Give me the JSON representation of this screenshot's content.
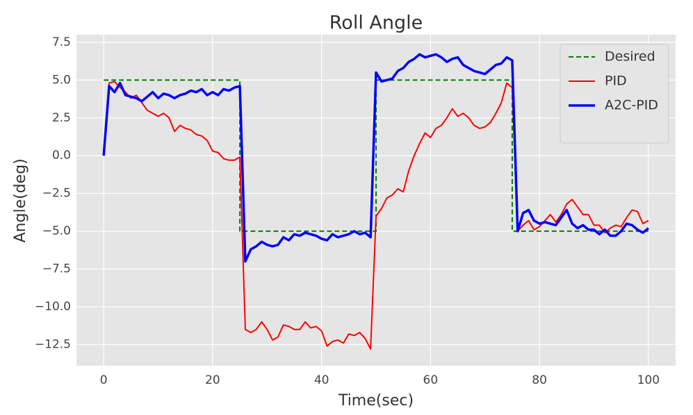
{
  "chart_data": {
    "type": "line",
    "title": "Roll Angle",
    "x_label": "Time(sec)",
    "y_label": "Angle(deg)",
    "x": [
      0,
      1,
      2,
      3,
      4,
      5,
      6,
      7,
      8,
      9,
      10,
      11,
      12,
      13,
      14,
      15,
      16,
      17,
      18,
      19,
      20,
      21,
      22,
      23,
      24,
      25,
      26,
      27,
      28,
      29,
      30,
      31,
      32,
      33,
      34,
      35,
      36,
      37,
      38,
      39,
      40,
      41,
      42,
      43,
      44,
      45,
      46,
      47,
      48,
      49,
      50,
      51,
      52,
      53,
      54,
      55,
      56,
      57,
      58,
      59,
      60,
      61,
      62,
      63,
      64,
      65,
      66,
      67,
      68,
      69,
      70,
      71,
      72,
      73,
      74,
      75,
      76,
      77,
      78,
      79,
      80,
      81,
      82,
      83,
      84,
      85,
      86,
      87,
      88,
      89,
      90,
      91,
      92,
      93,
      94,
      95,
      96,
      97,
      98,
      99,
      100
    ],
    "series": [
      {
        "name": "Desired",
        "color": "#008000",
        "linestyle": "dashed",
        "linewidth": 2,
        "x": [
          0,
          25,
          25,
          50,
          50,
          75,
          75,
          100
        ],
        "values": [
          5,
          5,
          -5,
          -5,
          5,
          5,
          -5,
          -5
        ]
      },
      {
        "name": "PID",
        "color": "#ff0000",
        "linestyle": "solid",
        "linewidth": 2,
        "values": [
          0,
          4.8,
          4.9,
          4.5,
          4.2,
          3.8,
          4.0,
          3.5,
          3.0,
          2.8,
          2.6,
          2.8,
          2.5,
          1.6,
          2.0,
          1.8,
          1.7,
          1.4,
          1.3,
          1.0,
          0.3,
          0.2,
          -0.2,
          -0.3,
          -0.3,
          -0.1,
          -11.5,
          -11.7,
          -11.5,
          -11.0,
          -11.5,
          -12.2,
          -12.0,
          -11.2,
          -11.3,
          -11.5,
          -11.5,
          -11.0,
          -11.4,
          -11.3,
          -11.6,
          -12.6,
          -12.3,
          -12.2,
          -12.4,
          -11.8,
          -11.9,
          -11.7,
          -12.1,
          -12.8,
          -4.0,
          -3.5,
          -2.8,
          -2.6,
          -2.2,
          -2.4,
          -1.0,
          0.0,
          0.8,
          1.5,
          1.2,
          1.8,
          2.0,
          2.5,
          3.1,
          2.6,
          2.8,
          2.5,
          2.0,
          1.8,
          1.9,
          2.2,
          2.8,
          3.5,
          4.8,
          4.5,
          -5.0,
          -4.6,
          -4.3,
          -4.9,
          -4.7,
          -4.3,
          -3.9,
          -4.4,
          -3.9,
          -3.2,
          -2.9,
          -3.4,
          -3.9,
          -3.9,
          -4.6,
          -4.6,
          -5.1,
          -4.8,
          -4.6,
          -4.7,
          -4.1,
          -3.6,
          -3.7,
          -4.5,
          -4.3
        ]
      },
      {
        "name": "A2C-PID",
        "color": "#0000ff",
        "linestyle": "solid",
        "linewidth": 3.5,
        "values": [
          0,
          4.6,
          4.2,
          4.8,
          4.0,
          3.9,
          3.8,
          3.6,
          3.9,
          4.2,
          3.8,
          4.1,
          4.0,
          3.8,
          4.0,
          4.1,
          4.3,
          4.2,
          4.4,
          4.0,
          4.2,
          4.0,
          4.4,
          4.3,
          4.5,
          4.6,
          -7.0,
          -6.2,
          -6.0,
          -5.7,
          -5.9,
          -6.0,
          -5.9,
          -5.4,
          -5.6,
          -5.2,
          -5.3,
          -5.1,
          -5.2,
          -5.3,
          -5.5,
          -5.6,
          -5.2,
          -5.4,
          -5.3,
          -5.2,
          -5.0,
          -5.2,
          -5.1,
          -5.4,
          5.5,
          4.9,
          5.0,
          5.1,
          5.6,
          5.8,
          6.2,
          6.4,
          6.7,
          6.5,
          6.6,
          6.7,
          6.5,
          6.2,
          6.4,
          6.5,
          6.0,
          5.8,
          5.6,
          5.5,
          5.4,
          5.7,
          6.0,
          6.1,
          6.5,
          6.3,
          -5.0,
          -3.8,
          -3.6,
          -4.3,
          -4.5,
          -4.4,
          -4.5,
          -4.6,
          -4.1,
          -3.6,
          -4.5,
          -4.8,
          -4.6,
          -4.9,
          -4.9,
          -5.2,
          -4.9,
          -5.3,
          -5.3,
          -5.0,
          -4.5,
          -4.6,
          -4.9,
          -5.1,
          -4.8
        ]
      }
    ],
    "xlim": [
      -5,
      105
    ],
    "ylim": [
      -13.9,
      8.0
    ],
    "xticks": [
      0,
      20,
      40,
      60,
      80,
      100
    ],
    "yticks": [
      {
        "value": -12.5,
        "label": "−12.5"
      },
      {
        "value": -10,
        "label": "−10.0"
      },
      {
        "value": -7.5,
        "label": "−7.5"
      },
      {
        "value": -5,
        "label": "−5.0"
      },
      {
        "value": -2.5,
        "label": "−2.5"
      },
      {
        "value": 0,
        "label": "0.0"
      },
      2.5,
      {
        "value": 5,
        "label": "5.0"
      },
      7.5
    ],
    "grid": true,
    "legend": "upper right",
    "background": "#e5e5e5"
  }
}
